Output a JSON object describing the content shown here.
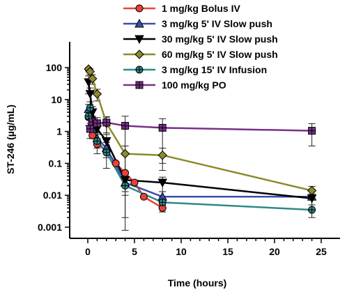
{
  "chart_data": {
    "type": "line",
    "title": "",
    "xlabel": "Time (hours)",
    "ylabel": "ST-246 (µg/mL)",
    "xlim": [
      0,
      25
    ],
    "ylim": [
      0.001,
      100
    ],
    "yscale": "log",
    "grid": false,
    "legend_position": "top-right",
    "x_ticks": [
      0,
      5,
      10,
      15,
      20,
      25
    ],
    "y_ticks": [
      0.001,
      0.01,
      0.1,
      1,
      10,
      100
    ],
    "x_tick_labels": [
      "0",
      "5",
      "10",
      "15",
      "20",
      "25"
    ],
    "y_tick_labels": [
      "0.001",
      "0.01",
      "0.1",
      "1",
      "10",
      "100"
    ],
    "series": [
      {
        "name": "1 mg/kg Bolus IV",
        "color": "#e8413a",
        "marker": "circle",
        "points": [
          {
            "x": 0.08,
            "y": 2.8
          },
          {
            "x": 0.25,
            "y": 1.3
          },
          {
            "x": 0.5,
            "y": 0.75
          },
          {
            "x": 1,
            "y": 0.4
          },
          {
            "x": 2,
            "y": 0.25
          },
          {
            "x": 3,
            "y": 0.1
          },
          {
            "x": 4,
            "y": 0.05
          },
          {
            "x": 5,
            "y": 0.025
          },
          {
            "x": 6,
            "y": 0.009
          },
          {
            "x": 8,
            "y": 0.004
          }
        ]
      },
      {
        "name": "3 mg/kg 5' IV Slow push",
        "color": "#3b4fa8",
        "marker": "triangle-up",
        "points": [
          {
            "x": 0.08,
            "y": 5.0
          },
          {
            "x": 0.25,
            "y": 3.0
          },
          {
            "x": 0.5,
            "y": 1.2
          },
          {
            "x": 1,
            "y": 0.6
          },
          {
            "x": 2,
            "y": 0.3
          },
          {
            "x": 4,
            "y": 0.025
          },
          {
            "x": 8,
            "y": 0.009
          },
          {
            "x": 24,
            "y": 0.009
          }
        ],
        "error": [
          2.0,
          1.5,
          0.6,
          0.3,
          0.15,
          0.012,
          0.004,
          0.004
        ]
      },
      {
        "name": "30 mg/kg 5' IV Slow push",
        "color": "#000000",
        "marker": "triangle-down",
        "points": [
          {
            "x": 0.08,
            "y": 35
          },
          {
            "x": 0.25,
            "y": 15
          },
          {
            "x": 0.5,
            "y": 4
          },
          {
            "x": 1,
            "y": 1.2
          },
          {
            "x": 2,
            "y": 0.5
          },
          {
            "x": 4,
            "y": 0.03
          },
          {
            "x": 8,
            "y": 0.025
          },
          {
            "x": 24,
            "y": 0.008
          }
        ],
        "error": [
          20,
          8,
          2,
          0.6,
          0.3,
          0.02,
          0.012,
          0.003
        ]
      },
      {
        "name": "60 mg/kg 5' IV Slow push",
        "color": "#8c8a2a",
        "marker": "diamond",
        "points": [
          {
            "x": 0.08,
            "y": 90
          },
          {
            "x": 0.25,
            "y": 75
          },
          {
            "x": 0.5,
            "y": 45
          },
          {
            "x": 1,
            "y": 15
          },
          {
            "x": 2,
            "y": 1.8
          },
          {
            "x": 4,
            "y": 0.2
          },
          {
            "x": 8,
            "y": 0.18
          },
          {
            "x": 24,
            "y": 0.014
          }
        ],
        "error": [
          10,
          15,
          15,
          6,
          1.0,
          0.15,
          0.12,
          0.005
        ]
      },
      {
        "name": "3 mg/kg 15' IV Infusion",
        "color": "#2e8a88",
        "marker": "circle-cross",
        "points": [
          {
            "x": 0.08,
            "y": 3.0
          },
          {
            "x": 0.25,
            "y": 5.5
          },
          {
            "x": 0.5,
            "y": 1.8
          },
          {
            "x": 1,
            "y": 0.5
          },
          {
            "x": 2,
            "y": 0.22
          },
          {
            "x": 4,
            "y": 0.02
          },
          {
            "x": 8,
            "y": 0.006
          },
          {
            "x": 24,
            "y": 0.0035
          }
        ],
        "error": [
          1.5,
          3.0,
          1.0,
          0.3,
          0.15,
          0.018,
          0.003,
          0.0015
        ]
      },
      {
        "name": "100 mg/kg PO",
        "color": "#7a2f8a",
        "marker": "square-cross",
        "points": [
          {
            "x": 0.25,
            "y": 1.2
          },
          {
            "x": 0.5,
            "y": 2.0
          },
          {
            "x": 1,
            "y": 1.8
          },
          {
            "x": 2,
            "y": 1.9
          },
          {
            "x": 4,
            "y": 1.5
          },
          {
            "x": 8,
            "y": 1.3
          },
          {
            "x": 24,
            "y": 1.05
          }
        ],
        "error": [
          0.6,
          1.0,
          0.9,
          1.0,
          1.5,
          1.2,
          0.7
        ]
      }
    ]
  }
}
